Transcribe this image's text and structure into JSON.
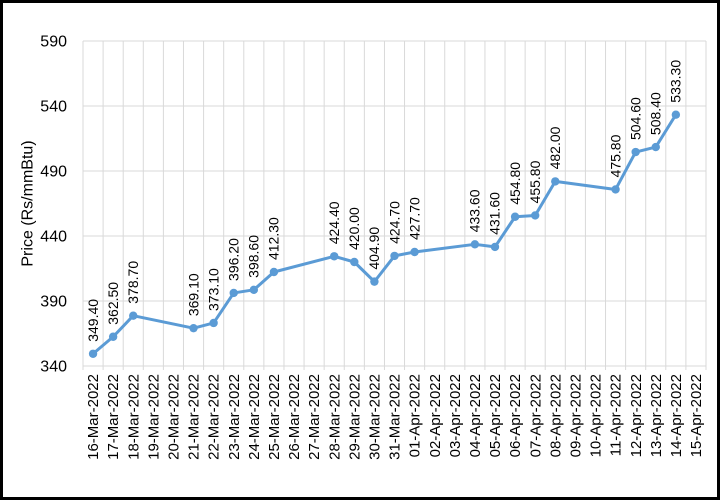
{
  "frame": {
    "background": "#FFFFFF",
    "border_color": "#000000"
  },
  "chart_data": {
    "type": "line",
    "title": "",
    "xlabel": "",
    "ylabel": "Price (Rs/mmBtu)",
    "ylim": [
      340,
      590
    ],
    "yticks": [
      340,
      390,
      440,
      490,
      540,
      590
    ],
    "grid": true,
    "legend": false,
    "line_color": "#5B9BD5",
    "marker_color": "#5B9BD5",
    "grid_color": "#D9D9D9",
    "text_color": "#000000",
    "categories": [
      "16-Mar-2022",
      "17-Mar-2022",
      "18-Mar-2022",
      "19-Mar-2022",
      "20-Mar-2022",
      "21-Mar-2022",
      "22-Mar-2022",
      "23-Mar-2022",
      "24-Mar-2022",
      "25-Mar-2022",
      "26-Mar-2022",
      "27-Mar-2022",
      "28-Mar-2022",
      "29-Mar-2022",
      "30-Mar-2022",
      "31-Mar-2022",
      "01-Apr-2022",
      "02-Apr-2022",
      "03-Apr-2022",
      "04-Apr-2022",
      "05-Apr-2022",
      "06-Apr-2022",
      "07-Apr-2022",
      "08-Apr-2022",
      "09-Apr-2022",
      "10-Apr-2022",
      "11-Apr-2022",
      "12-Apr-2022",
      "13-Apr-2022",
      "14-Apr-2022",
      "15-Apr-2022"
    ],
    "series": [
      {
        "name": "Price",
        "points": [
          {
            "x": "16-Mar-2022",
            "y": 349.4,
            "label": "349.40"
          },
          {
            "x": "17-Mar-2022",
            "y": 362.5,
            "label": "362.50"
          },
          {
            "x": "18-Mar-2022",
            "y": 378.7,
            "label": "378.70"
          },
          {
            "x": "21-Mar-2022",
            "y": 369.1,
            "label": "369.10"
          },
          {
            "x": "22-Mar-2022",
            "y": 373.1,
            "label": "373.10"
          },
          {
            "x": "23-Mar-2022",
            "y": 396.2,
            "label": "396.20"
          },
          {
            "x": "24-Mar-2022",
            "y": 398.6,
            "label": "398.60"
          },
          {
            "x": "25-Mar-2022",
            "y": 412.3,
            "label": "412.30"
          },
          {
            "x": "28-Mar-2022",
            "y": 424.4,
            "label": "424.40"
          },
          {
            "x": "29-Mar-2022",
            "y": 420.0,
            "label": "420.00"
          },
          {
            "x": "30-Mar-2022",
            "y": 404.9,
            "label": "404.90"
          },
          {
            "x": "31-Mar-2022",
            "y": 424.7,
            "label": "424.70"
          },
          {
            "x": "01-Apr-2022",
            "y": 427.7,
            "label": "427.70"
          },
          {
            "x": "04-Apr-2022",
            "y": 433.6,
            "label": "433.60"
          },
          {
            "x": "05-Apr-2022",
            "y": 431.6,
            "label": "431.60"
          },
          {
            "x": "06-Apr-2022",
            "y": 454.8,
            "label": "454.80"
          },
          {
            "x": "07-Apr-2022",
            "y": 455.8,
            "label": "455.80"
          },
          {
            "x": "08-Apr-2022",
            "y": 482.0,
            "label": "482.00"
          },
          {
            "x": "11-Apr-2022",
            "y": 475.8,
            "label": "475.80"
          },
          {
            "x": "12-Apr-2022",
            "y": 504.6,
            "label": "504.60"
          },
          {
            "x": "13-Apr-2022",
            "y": 508.4,
            "label": "508.40"
          },
          {
            "x": "14-Apr-2022",
            "y": 533.3,
            "label": "533.30"
          }
        ]
      }
    ]
  }
}
